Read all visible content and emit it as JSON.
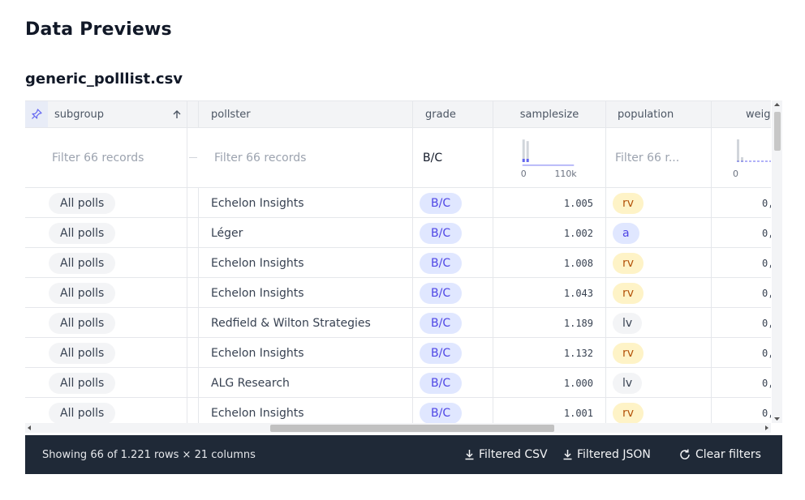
{
  "page": {
    "title": "Data Previews",
    "file_name": "generic_polllist.csv"
  },
  "columns": [
    {
      "name": "subgroup",
      "sort_icon": "arrow-up-icon"
    },
    {
      "name": "pollster"
    },
    {
      "name": "grade"
    },
    {
      "name": "samplesize"
    },
    {
      "name": "population"
    },
    {
      "name": "weig"
    }
  ],
  "filters": {
    "subgroup_placeholder": "Filter 66 records",
    "pollster_placeholder": "Filter 66 records",
    "grade_value": "B/C",
    "samplesize_min": "0",
    "samplesize_max": "110k",
    "population_placeholder": "Filter 66 r...",
    "weight_min": "0"
  },
  "rows": [
    {
      "subgroup": "All polls",
      "pollster": "Echelon Insights",
      "grade": "B/C",
      "samplesize": "1.005",
      "population": "rv",
      "weight": "0,"
    },
    {
      "subgroup": "All polls",
      "pollster": "Léger",
      "grade": "B/C",
      "samplesize": "1.002",
      "population": "a",
      "weight": "0,"
    },
    {
      "subgroup": "All polls",
      "pollster": "Echelon Insights",
      "grade": "B/C",
      "samplesize": "1.008",
      "population": "rv",
      "weight": "0,"
    },
    {
      "subgroup": "All polls",
      "pollster": "Echelon Insights",
      "grade": "B/C",
      "samplesize": "1.043",
      "population": "rv",
      "weight": "0,"
    },
    {
      "subgroup": "All polls",
      "pollster": "Redfield & Wilton Strategies",
      "grade": "B/C",
      "samplesize": "1.189",
      "population": "lv",
      "weight": "0,"
    },
    {
      "subgroup": "All polls",
      "pollster": "Echelon Insights",
      "grade": "B/C",
      "samplesize": "1.132",
      "population": "rv",
      "weight": "0,"
    },
    {
      "subgroup": "All polls",
      "pollster": "ALG Research",
      "grade": "B/C",
      "samplesize": "1.000",
      "population": "lv",
      "weight": "0,"
    },
    {
      "subgroup": "All polls",
      "pollster": "Echelon Insights",
      "grade": "B/C",
      "samplesize": "1.001",
      "population": "rv",
      "weight": "0,"
    }
  ],
  "population_colors": {
    "rv": "#fef3c7",
    "a": "#e0e7ff",
    "lv": "#f3f4f6"
  },
  "footer": {
    "status": "Showing 66 of 1.221 rows × 21 columns",
    "filtered_csv": "Filtered CSV",
    "filtered_json": "Filtered JSON",
    "clear_filters": "Clear filters"
  }
}
